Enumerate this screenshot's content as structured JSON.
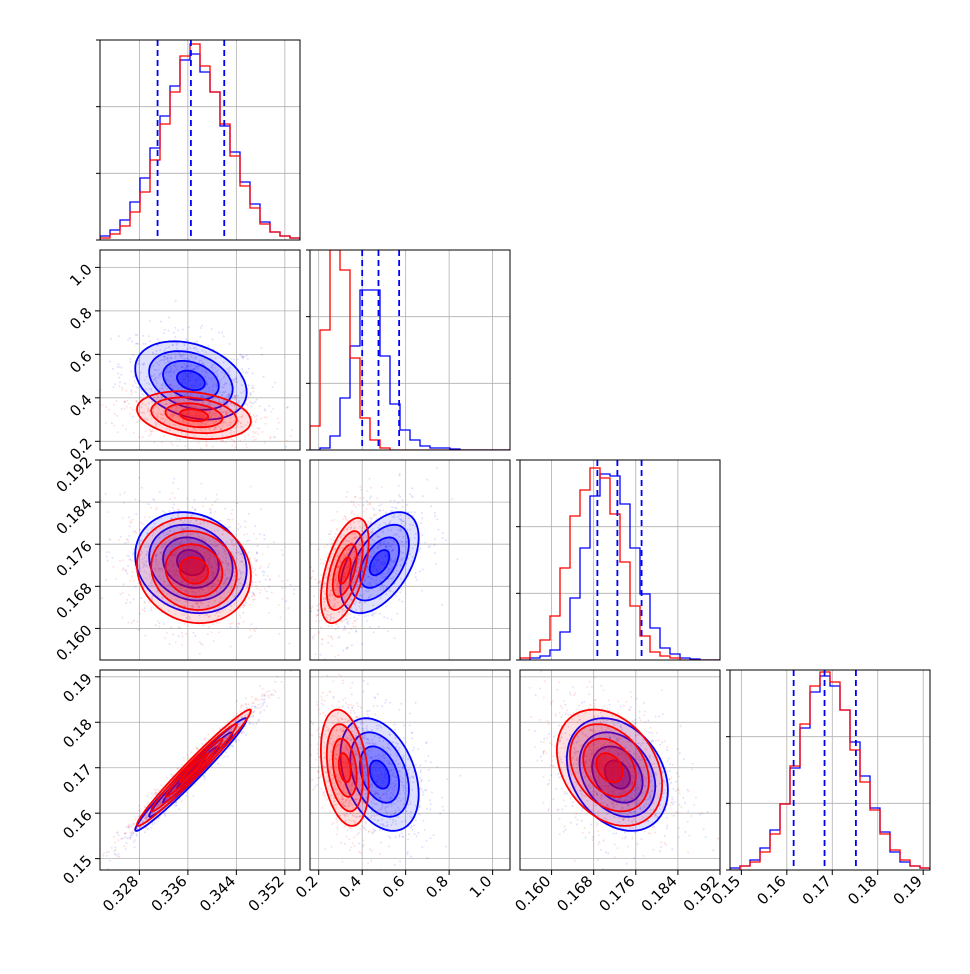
{
  "colors": {
    "blue": "#0000ff",
    "red": "#ff0000",
    "grid": "#b0b0b0",
    "frame": "#000000"
  },
  "chart_data": {
    "type": "corner",
    "grid": true,
    "params": [
      {
        "range": [
          0.3215,
          0.3545
        ],
        "ticks": [
          "0.328",
          "0.336",
          "0.344",
          "0.352"
        ],
        "tick_values": [
          0.328,
          0.336,
          0.344,
          0.352
        ]
      },
      {
        "range": [
          0.16,
          1.08
        ],
        "ticks": [
          "0.2",
          "0.4",
          "0.6",
          "0.8",
          "1.0"
        ],
        "tick_values": [
          0.2,
          0.4,
          0.6,
          0.8,
          1.0
        ]
      },
      {
        "range": [
          0.154,
          0.192
        ],
        "ticks": [
          "0.160",
          "0.168",
          "0.176",
          "0.184",
          "0.192"
        ],
        "tick_values": [
          0.16,
          0.168,
          0.176,
          0.184,
          0.192
        ]
      },
      {
        "range": [
          0.1475,
          0.1915
        ],
        "ticks": [
          "0.15",
          "0.16",
          "0.17",
          "0.18",
          "0.19"
        ],
        "tick_values": [
          0.15,
          0.16,
          0.17,
          0.18,
          0.19
        ]
      }
    ],
    "quantile_lines": [
      [
        0.331,
        0.3365,
        0.342
      ],
      [
        0.4,
        0.475,
        0.57
      ],
      [
        0.1687,
        0.1725,
        0.1771
      ],
      [
        0.1615,
        0.1683,
        0.1752
      ]
    ],
    "histograms": [
      {
        "bins": 20,
        "blue": [
          0.02,
          0.05,
          0.1,
          0.19,
          0.31,
          0.46,
          0.62,
          0.77,
          0.9,
          0.93,
          0.84,
          0.74,
          0.57,
          0.44,
          0.29,
          0.18,
          0.09,
          0.04,
          0.02,
          0.01
        ],
        "red": [
          0.01,
          0.03,
          0.07,
          0.14,
          0.24,
          0.4,
          0.58,
          0.74,
          0.92,
          0.98,
          0.87,
          0.74,
          0.58,
          0.42,
          0.27,
          0.16,
          0.08,
          0.04,
          0.02,
          0.01
        ]
      },
      {
        "bins": 20,
        "blue": [
          0.0,
          0.01,
          0.07,
          0.26,
          0.52,
          0.8,
          0.8,
          0.47,
          0.23,
          0.1,
          0.05,
          0.02,
          0.01,
          0.01,
          0.005,
          0.0,
          0.0,
          0.0,
          0.0,
          0.0
        ],
        "red": [
          0.12,
          0.6,
          1.0,
          0.9,
          0.46,
          0.16,
          0.05,
          0.01,
          0.0,
          0.0,
          0.0,
          0.0,
          0.0,
          0.0,
          0.0,
          0.0,
          0.0,
          0.0,
          0.0,
          0.0
        ]
      },
      {
        "bins": 20,
        "blue": [
          0.0,
          0.01,
          0.02,
          0.05,
          0.14,
          0.31,
          0.56,
          0.82,
          0.93,
          0.92,
          0.78,
          0.56,
          0.33,
          0.16,
          0.06,
          0.03,
          0.01,
          0.005,
          0.0,
          0.0
        ],
        "red": [
          0.01,
          0.04,
          0.1,
          0.22,
          0.46,
          0.72,
          0.85,
          0.96,
          0.91,
          0.73,
          0.49,
          0.27,
          0.12,
          0.04,
          0.02,
          0.01,
          0.0,
          0.0,
          0.0,
          0.0
        ]
      },
      {
        "bins": 20,
        "blue": [
          0.01,
          0.02,
          0.05,
          0.11,
          0.2,
          0.33,
          0.51,
          0.71,
          0.89,
          0.97,
          0.92,
          0.8,
          0.64,
          0.47,
          0.31,
          0.19,
          0.09,
          0.04,
          0.02,
          0.01
        ],
        "red": [
          0.0,
          0.02,
          0.04,
          0.09,
          0.18,
          0.33,
          0.52,
          0.73,
          0.92,
          0.99,
          0.94,
          0.8,
          0.6,
          0.44,
          0.3,
          0.18,
          0.1,
          0.05,
          0.02,
          0.01
        ]
      }
    ],
    "distributions": {
      "blue": {
        "mean": [
          0.3365,
          0.48,
          0.1725,
          0.1685
        ],
        "sd": [
          0.0046,
          0.09,
          0.0048,
          0.0062
        ],
        "corr": [
          [
            1.0,
            -0.3,
            -0.15,
            0.98
          ],
          [
            -0.3,
            1.0,
            0.5,
            -0.35
          ],
          [
            -0.15,
            0.5,
            1.0,
            -0.28
          ],
          [
            0.98,
            -0.35,
            -0.28,
            1.0
          ]
        ]
      },
      "red": {
        "mean": [
          0.337,
          0.32,
          0.171,
          0.17
        ],
        "sd": [
          0.0047,
          0.055,
          0.005,
          0.0064
        ],
        "corr": [
          [
            1.0,
            -0.25,
            -0.1,
            0.98
          ],
          [
            -0.25,
            1.0,
            0.55,
            -0.3
          ],
          [
            -0.1,
            0.55,
            1.0,
            -0.3
          ],
          [
            0.98,
            -0.3,
            -0.3,
            1.0
          ]
        ]
      }
    }
  }
}
